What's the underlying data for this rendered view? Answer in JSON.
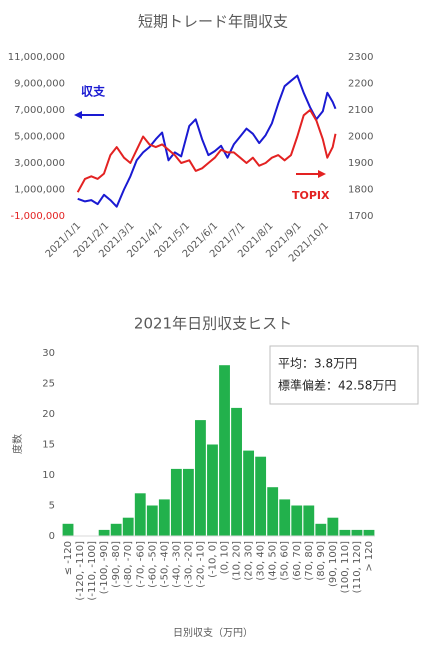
{
  "chart_data": [
    {
      "type": "line",
      "title": "短期トレード年間収支",
      "x": [
        "2021/1/4",
        "2021/1/12",
        "2021/1/19",
        "2021/1/26",
        "2021/2/2",
        "2021/2/9",
        "2021/2/16",
        "2021/2/24",
        "2021/3/3",
        "2021/3/10",
        "2021/3/17",
        "2021/3/24",
        "2021/3/31",
        "2021/4/7",
        "2021/4/14",
        "2021/4/21",
        "2021/4/28",
        "2021/5/7",
        "2021/5/14",
        "2021/5/21",
        "2021/5/28",
        "2021/6/4",
        "2021/6/11",
        "2021/6/18",
        "2021/6/25",
        "2021/7/2",
        "2021/7/9",
        "2021/7/16",
        "2021/7/23",
        "2021/7/30",
        "2021/8/6",
        "2021/8/13",
        "2021/8/20",
        "2021/8/27",
        "2021/9/3",
        "2021/9/10",
        "2021/9/17",
        "2021/9/24",
        "2021/10/1",
        "2021/10/6",
        "2021/10/12",
        "2021/10/15"
      ],
      "series": [
        {
          "name": "収支",
          "color": "#1a1ad2",
          "values": [
            300000,
            100000,
            200000,
            -100000,
            600000,
            200000,
            -300000,
            1000000,
            2000000,
            3200000,
            3800000,
            4200000,
            4800000,
            5300000,
            3200000,
            3800000,
            3500000,
            5800000,
            6300000,
            4800000,
            3600000,
            3900000,
            4300000,
            3400000,
            4400000,
            5000000,
            5600000,
            5200000,
            4500000,
            5100000,
            6000000,
            7500000,
            8800000,
            9200000,
            9600000,
            8300000,
            7200000,
            6300000,
            6900000,
            8300000,
            7600000,
            7100000
          ]
        },
        {
          "name": "TOPIX",
          "color": "#e32222",
          "axis": "y2",
          "values": [
            1790,
            1840,
            1850,
            1840,
            1860,
            1930,
            1960,
            1920,
            1900,
            1950,
            2000,
            1970,
            1960,
            1970,
            1950,
            1930,
            1900,
            1910,
            1870,
            1880,
            1900,
            1920,
            1950,
            1940,
            1940,
            1920,
            1900,
            1920,
            1890,
            1900,
            1920,
            1930,
            1910,
            1930,
            2000,
            2080,
            2100,
            2060,
            1990,
            1920,
            1960,
            2010
          ]
        }
      ],
      "xlim": [
        "2021/1/1",
        "2021/10/20"
      ],
      "xticks": [
        "2021/1/1",
        "2021/2/1",
        "2021/3/1",
        "2021/4/1",
        "2021/5/1",
        "2021/6/1",
        "2021/7/1",
        "2021/8/1",
        "2021/9/1",
        "2021/10/1"
      ],
      "ylim": [
        -1000000,
        11000000
      ],
      "yticks": [
        {
          "value": -1000000,
          "label": "-1,000,000"
        },
        {
          "value": 1000000,
          "label": "1,000,000"
        },
        {
          "value": 3000000,
          "label": "3,000,000"
        },
        {
          "value": 5000000,
          "label": "5,000,000"
        },
        {
          "value": 7000000,
          "label": "7,000,000"
        },
        {
          "value": 9000000,
          "label": "9,000,000"
        },
        {
          "value": 11000000,
          "label": "11,000,000"
        }
      ],
      "y2lim": [
        1700,
        2300
      ],
      "y2ticks": [
        1700,
        1800,
        1900,
        2000,
        2100,
        2200,
        2300
      ]
    },
    {
      "type": "bar",
      "title": "2021年日別収支ヒスト",
      "x_label": "日別収支（万円）",
      "y_label": "度数",
      "annotations": [
        "平均：3.8万円",
        "標準偏差：42.58万円"
      ],
      "categories": [
        "≤ -120",
        "(-120, -110]",
        "(-110, -100]",
        "(-100, -90]",
        "(-90, -80]",
        "(-80, -70]",
        "(-70, -60]",
        "(-60, -50]",
        "(-50, -40]",
        "(-40, -30]",
        "(-30, -20]",
        "(-20, -10]",
        "(-10, 0]",
        "(0, 10]",
        "(10, 20]",
        "(20, 30]",
        "(30, 40]",
        "(40, 50]",
        "(50, 60]",
        "(60, 70]",
        "(70, 80]",
        "(80, 90]",
        "(90, 100]",
        "(100, 110]",
        "(110, 120]",
        "> 120"
      ],
      "values": [
        2,
        0,
        0,
        1,
        2,
        3,
        7,
        5,
        6,
        11,
        11,
        19,
        15,
        28,
        21,
        14,
        13,
        8,
        6,
        5,
        5,
        2,
        3,
        1,
        1,
        1
      ],
      "color": "#22b14c",
      "ylim": [
        0,
        30
      ],
      "yticks": [
        0,
        5,
        10,
        15,
        20,
        25,
        30
      ]
    }
  ]
}
